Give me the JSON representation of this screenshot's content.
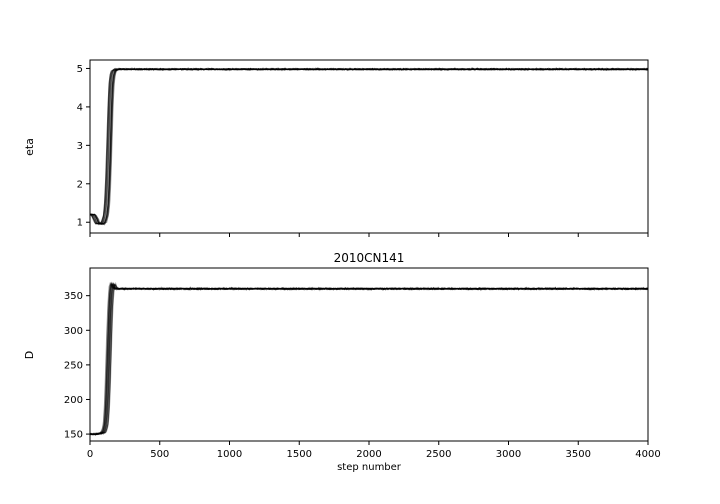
{
  "chart_data": [
    {
      "type": "line",
      "title": "",
      "xlabel": "",
      "ylabel": "eta",
      "xlim": [
        0,
        4000
      ],
      "ylim": [
        0.72,
        5.22
      ],
      "x_ticks": [
        0,
        500,
        1000,
        1500,
        2000,
        2500,
        3000,
        3500,
        4000
      ],
      "x_tick_labels_shown": false,
      "y_ticks": [
        1,
        2,
        3,
        4,
        5
      ],
      "y_tick_labels": [
        "1",
        "2",
        "3",
        "4",
        "5"
      ],
      "grid": false,
      "line_color": "#000000",
      "series_count": 20,
      "trace_profile": {
        "x": [
          0,
          25,
          40,
          55,
          70,
          85,
          100,
          115,
          125,
          135,
          145,
          152,
          160,
          170,
          185,
          200,
          230,
          300,
          500,
          1000,
          1500,
          2000,
          2500,
          3000,
          3500,
          4000
        ],
        "y": [
          1.2,
          1.2,
          1.1,
          0.97,
          0.96,
          0.96,
          1.0,
          1.2,
          1.6,
          2.5,
          3.8,
          4.5,
          4.8,
          4.93,
          4.97,
          4.98,
          4.98,
          4.98,
          4.98,
          4.98,
          4.98,
          4.98,
          4.98,
          4.98,
          4.98,
          4.98
        ]
      }
    },
    {
      "type": "line",
      "title": "2010CN141",
      "xlabel": "step number",
      "ylabel": "D",
      "xlim": [
        0,
        4000
      ],
      "ylim": [
        140,
        390
      ],
      "x_ticks": [
        0,
        500,
        1000,
        1500,
        2000,
        2500,
        3000,
        3500,
        4000
      ],
      "x_tick_labels": [
        "0",
        "500",
        "1000",
        "1500",
        "2000",
        "2500",
        "3000",
        "3500",
        "4000"
      ],
      "y_ticks": [
        150,
        200,
        250,
        300,
        350
      ],
      "y_tick_labels": [
        "150",
        "200",
        "250",
        "300",
        "350"
      ],
      "grid": false,
      "line_color": "#000000",
      "series_count": 20,
      "trace_profile": {
        "x": [
          0,
          50,
          80,
          100,
          115,
          125,
          135,
          145,
          155,
          165,
          175,
          190,
          220,
          300,
          500,
          1000,
          1500,
          2000,
          2500,
          3000,
          3500,
          4000
        ],
        "y": [
          150,
          150,
          151,
          153,
          165,
          200,
          265,
          330,
          362,
          368,
          362,
          360,
          360,
          360,
          360,
          360,
          360,
          360,
          360,
          360,
          360,
          360
        ]
      }
    }
  ]
}
